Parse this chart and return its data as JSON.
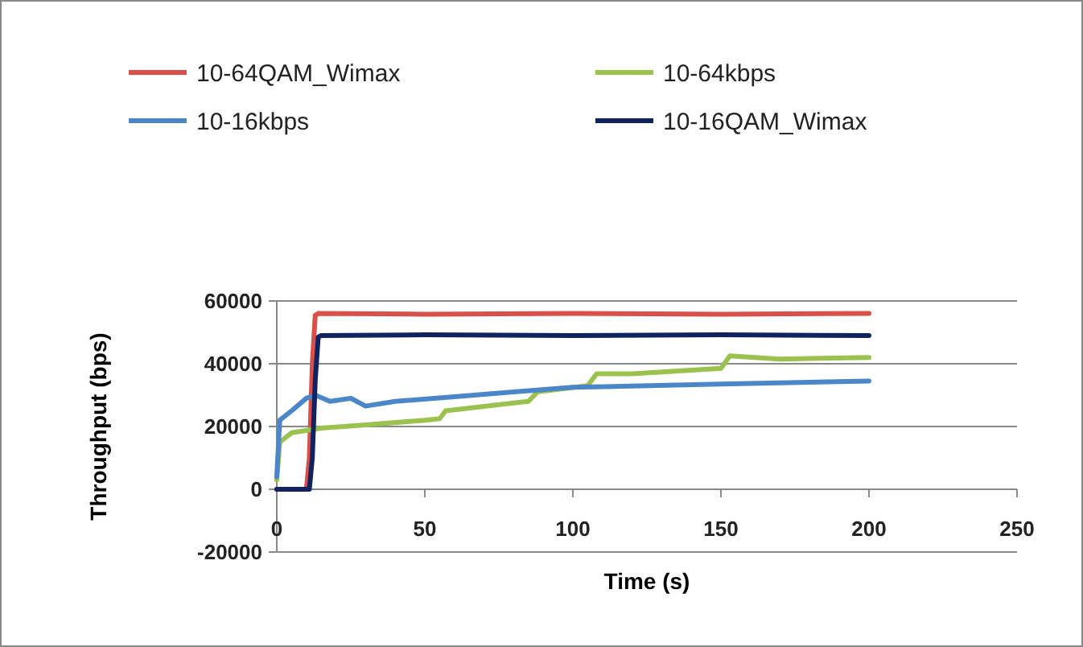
{
  "chart_data": {
    "type": "line",
    "xlabel": "Time (s)",
    "ylabel": "Throughput (bps)",
    "xlim": [
      0,
      250
    ],
    "xticks": [
      0,
      50,
      100,
      150,
      200,
      250
    ],
    "ylim": [
      -20000,
      60000
    ],
    "yticks": [
      -20000,
      0,
      20000,
      40000,
      60000
    ],
    "grid": "y",
    "legend": "top",
    "marker": "none",
    "line_style": "solid",
    "series": [
      {
        "name": "10-64QAM_Wimax",
        "color": "#d9504a",
        "x": [
          0,
          10,
          11,
          12,
          13,
          14,
          50,
          100,
          150,
          200
        ],
        "values": [
          0,
          0,
          10000,
          40000,
          55500,
          56000,
          55800,
          56000,
          55800,
          56000
        ]
      },
      {
        "name": "10-64kbps",
        "color": "#9bc14f",
        "x": [
          0,
          1,
          5,
          15,
          30,
          50,
          55,
          57,
          80,
          85,
          88,
          105,
          108,
          120,
          150,
          153,
          170,
          200
        ],
        "values": [
          3000,
          15000,
          18000,
          19500,
          20500,
          22000,
          22500,
          25000,
          27500,
          28000,
          31000,
          33000,
          36800,
          36800,
          38500,
          42500,
          41500,
          42000
        ]
      },
      {
        "name": "10-16kbps",
        "color": "#4a86c8",
        "x": [
          0,
          1,
          5,
          10,
          13,
          18,
          25,
          30,
          40,
          60,
          80,
          100,
          150,
          200
        ],
        "values": [
          4000,
          22000,
          25000,
          29000,
          30000,
          28000,
          29000,
          26500,
          28000,
          29500,
          31000,
          32500,
          33500,
          34500
        ]
      },
      {
        "name": "10-16QAM_Wimax",
        "color": "#10235e",
        "x": [
          0,
          11,
          12,
          13,
          14,
          15,
          50,
          100,
          150,
          200
        ],
        "values": [
          0,
          0,
          10000,
          35000,
          48500,
          49000,
          49200,
          49000,
          49200,
          49000
        ]
      }
    ]
  }
}
